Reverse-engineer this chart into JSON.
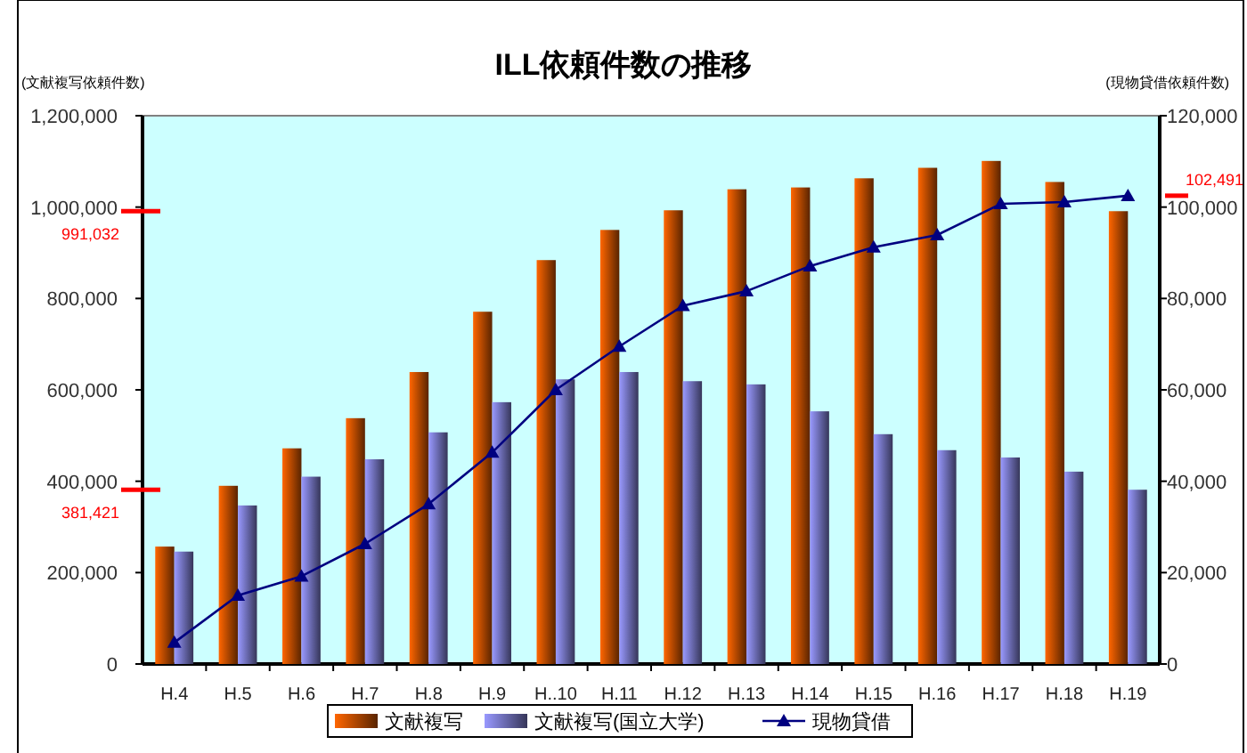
{
  "chart_data": {
    "type": "bar",
    "title": "ILL依頼件数の推移",
    "ylabel": "(文献複写依頼件数)",
    "y2label": "(現物貸借依頼件数)",
    "categories": [
      "H.4",
      "H.5",
      "H.6",
      "H.7",
      "H.8",
      "H.9",
      "H..10",
      "H.11",
      "H.12",
      "H.13",
      "H.14",
      "H.15",
      "H.16",
      "H.17",
      "H.18",
      "H.19"
    ],
    "series": [
      {
        "name": "文献複写",
        "color": "#ff6600",
        "values": [
          257000,
          390000,
          472000,
          538000,
          639000,
          771000,
          884000,
          950000,
          993000,
          1039000,
          1043000,
          1063000,
          1086000,
          1101000,
          1055000,
          991032
        ]
      },
      {
        "name": "文献複写(国立大学)",
        "color": "#9999ff",
        "values": [
          246000,
          347000,
          410000,
          448000,
          507000,
          573000,
          623000,
          639000,
          619000,
          612000,
          553000,
          503000,
          468000,
          452000,
          421000,
          381421
        ]
      },
      {
        "name": "現物貸借",
        "type": "line",
        "axis": "y2",
        "color": "#000080",
        "marker": "triangle",
        "values": [
          4700,
          15000,
          19200,
          26300,
          35000,
          46300,
          60000,
          69500,
          78400,
          81600,
          87100,
          91200,
          93900,
          100700,
          101100,
          102491
        ]
      }
    ],
    "ylim": [
      0,
      1200000
    ],
    "yticks": [
      {
        "value": 0,
        "label": "0"
      },
      {
        "value": 200000,
        "label": "200,000"
      },
      {
        "value": 400000,
        "label": "400,000"
      },
      {
        "value": 600000,
        "label": "600,000"
      },
      {
        "value": 800000,
        "label": "800,000"
      },
      {
        "value": 1000000,
        "label": "1,000,000"
      },
      {
        "value": 1200000,
        "label": "1,200,000"
      }
    ],
    "y2lim": [
      0,
      120000
    ],
    "y2ticks": [
      {
        "value": 0,
        "label": "0"
      },
      {
        "value": 20000,
        "label": "20,000"
      },
      {
        "value": 40000,
        "label": "40,000"
      },
      {
        "value": 60000,
        "label": "60,000"
      },
      {
        "value": 80000,
        "label": "80,000"
      },
      {
        "value": 100000,
        "label": "100,000"
      },
      {
        "value": 120000,
        "label": "120,000"
      }
    ],
    "ref_lines": [
      {
        "axis": "y",
        "value": 991032,
        "label": "991,032",
        "color": "#ff0000"
      },
      {
        "axis": "y",
        "value": 381421,
        "label": "381,421",
        "color": "#ff0000"
      },
      {
        "axis": "y2",
        "value": 102491,
        "label": "102,491",
        "color": "#ff0000"
      }
    ],
    "grid": false,
    "legend": "bottom"
  }
}
